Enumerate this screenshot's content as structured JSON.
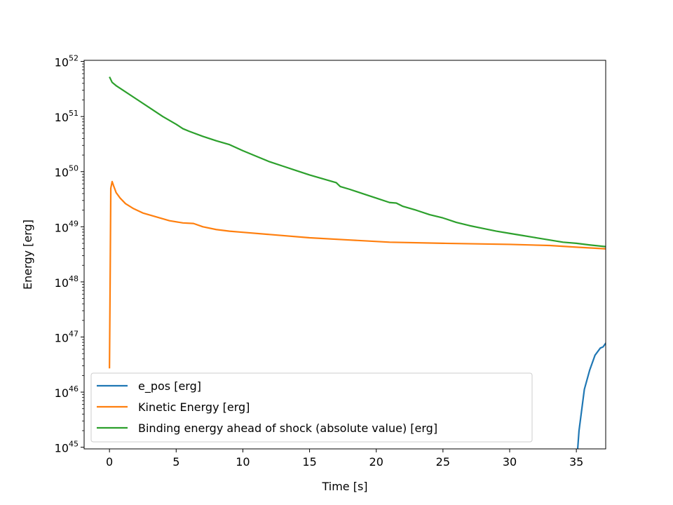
{
  "chart_data": {
    "type": "line",
    "title": "",
    "xlabel": "Time [s]",
    "ylabel": "Energy [erg]",
    "yscale": "log",
    "xlim": [
      -1.9,
      37.2
    ],
    "ylim_exponent": [
      44.97,
      52.02
    ],
    "x_ticks": [
      0,
      5,
      10,
      15,
      20,
      25,
      30,
      35
    ],
    "y_tick_exponents": [
      45,
      46,
      47,
      48,
      49,
      50,
      51,
      52
    ],
    "y_tick_base": "10",
    "legend_position": "lower-left",
    "series": [
      {
        "name": "e_pos [erg]",
        "color": "#1f77b4",
        "x": [
          35.1,
          35.2,
          35.6,
          36.0,
          36.4,
          36.8,
          37.0,
          37.3
        ],
        "log10_y": [
          44.97,
          45.3,
          46.05,
          46.4,
          46.67,
          46.8,
          46.82,
          46.92
        ]
      },
      {
        "name": "Kinetic Energy [erg]",
        "color": "#ff7f0e",
        "x": [
          0.0,
          0.05,
          0.1,
          0.2,
          0.3,
          0.5,
          0.8,
          1.2,
          1.8,
          2.5,
          3.5,
          4.5,
          5.5,
          6.3,
          7.0,
          8.0,
          9.0,
          10.0,
          12.0,
          15.0,
          18.0,
          21.0,
          25.0,
          30.0,
          33.0,
          35.0,
          37.2
        ],
        "log10_y": [
          46.43,
          48.0,
          49.7,
          49.82,
          49.75,
          49.62,
          49.52,
          49.42,
          49.33,
          49.25,
          49.18,
          49.11,
          49.07,
          49.06,
          49.0,
          48.95,
          48.92,
          48.9,
          48.86,
          48.8,
          48.76,
          48.72,
          48.7,
          48.68,
          48.66,
          48.63,
          48.6
        ]
      },
      {
        "name": "Binding energy ahead of shock (absolute value) [erg]",
        "color": "#2ca02c",
        "x": [
          0.0,
          0.2,
          0.5,
          1.0,
          2.0,
          3.0,
          4.0,
          5.0,
          5.5,
          6.0,
          7.0,
          8.0,
          9.0,
          10.0,
          11.0,
          12.0,
          13.0,
          14.0,
          15.0,
          16.0,
          17.0,
          17.3,
          18.0,
          19.0,
          20.0,
          21.0,
          21.5,
          22.0,
          23.0,
          24.0,
          25.0,
          26.0,
          27.0,
          28.0,
          29.0,
          30.0,
          31.0,
          32.0,
          33.0,
          34.0,
          35.0,
          36.0,
          37.2
        ],
        "log10_y": [
          51.72,
          51.62,
          51.56,
          51.48,
          51.32,
          51.16,
          51.0,
          50.86,
          50.78,
          50.73,
          50.64,
          50.56,
          50.49,
          50.38,
          50.28,
          50.18,
          50.1,
          50.02,
          49.94,
          49.87,
          49.8,
          49.73,
          49.68,
          49.6,
          49.52,
          49.44,
          49.43,
          49.37,
          49.3,
          49.22,
          49.16,
          49.08,
          49.02,
          48.97,
          48.92,
          48.88,
          48.84,
          48.8,
          48.76,
          48.72,
          48.7,
          48.67,
          48.64
        ]
      }
    ]
  }
}
